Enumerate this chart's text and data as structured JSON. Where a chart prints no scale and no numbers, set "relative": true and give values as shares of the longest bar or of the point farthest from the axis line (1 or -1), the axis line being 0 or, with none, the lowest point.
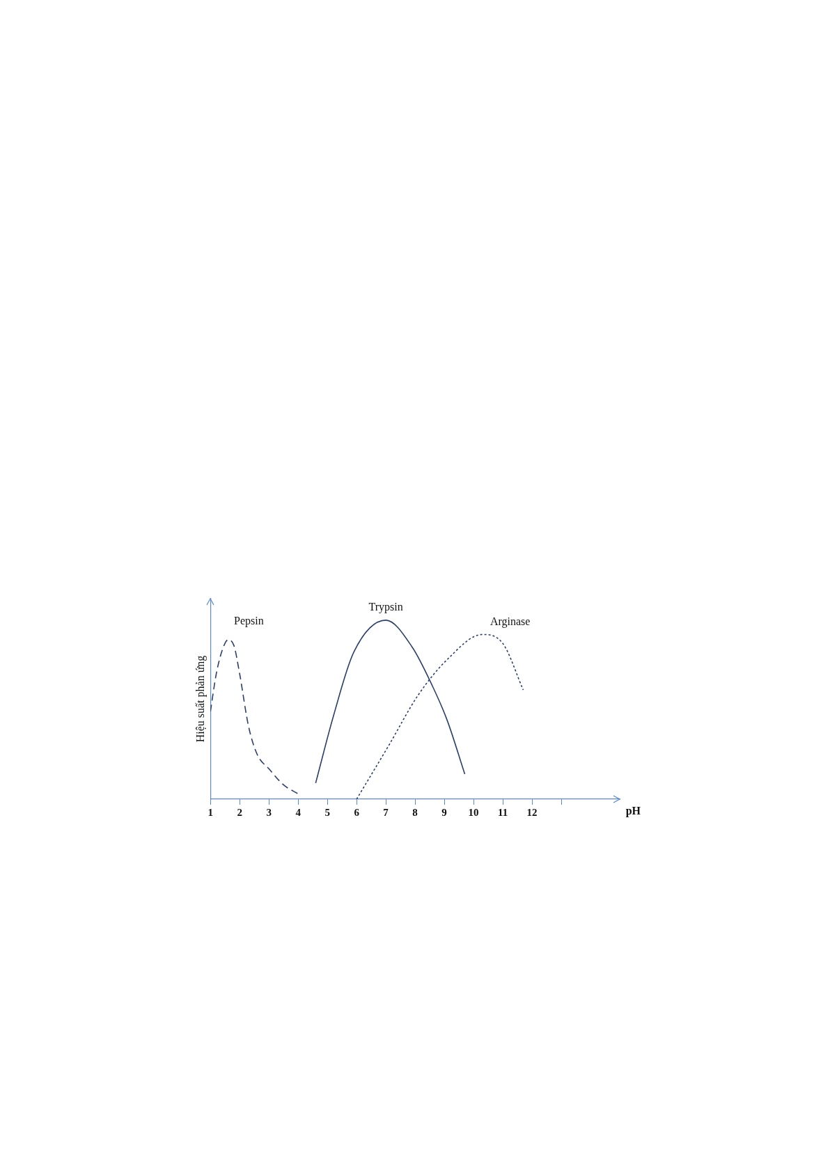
{
  "chart_data": {
    "type": "line",
    "relative": true,
    "xlabel": "pH",
    "ylabel": "Hiệu suất phản ứng",
    "xlim": [
      1,
      15
    ],
    "xticks": [
      1,
      2,
      3,
      4,
      5,
      6,
      7,
      8,
      9,
      10,
      11,
      12,
      {
        "value": 13,
        "label": null
      }
    ],
    "grid": false,
    "legend": false,
    "marker": "none",
    "series": [
      {
        "name": "Pepsin",
        "color": "#2b3f6e",
        "line_style": "dashed",
        "x": [
          1,
          1.2,
          1.4,
          1.6,
          1.8,
          2.0,
          2.3,
          2.6,
          3,
          3.5,
          4
        ],
        "values": [
          0.49,
          0.7,
          0.83,
          0.89,
          0.86,
          0.7,
          0.41,
          0.25,
          0.17,
          0.08,
          0.03
        ]
      },
      {
        "name": "Trypsin",
        "color": "#2b3f6e",
        "line_style": "solid",
        "x": [
          4.6,
          5.2,
          5.9,
          7,
          7.9,
          8.6,
          9.1,
          9.7
        ],
        "values": [
          0.09,
          0.46,
          0.82,
          1.0,
          0.85,
          0.63,
          0.44,
          0.14
        ]
      },
      {
        "name": "Arginase",
        "color": "#2b3f6e",
        "line_style": "dotted",
        "x": [
          6,
          7.1,
          8.1,
          9.1,
          10.3,
          11,
          11.7
        ],
        "values": [
          0,
          0.3,
          0.58,
          0.78,
          0.92,
          0.87,
          0.61
        ]
      }
    ]
  }
}
